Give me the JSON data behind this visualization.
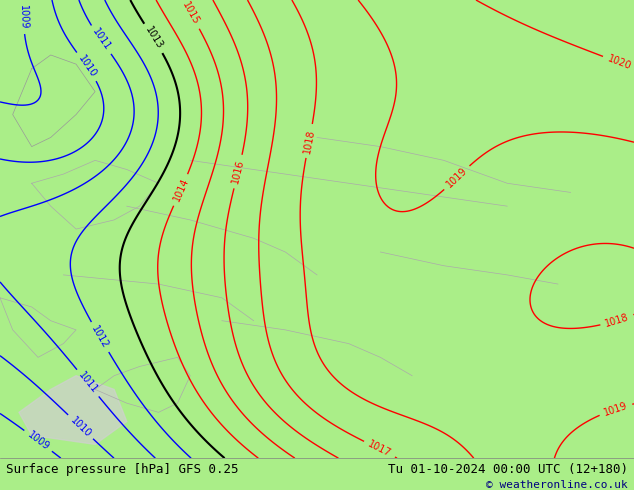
{
  "title_left": "Surface pressure [hPa] GFS 0.25",
  "title_right": "Tu 01-10-2024 00:00 UTC (12+180)",
  "copyright": "© weatheronline.co.uk",
  "bg_color": "#aaee88",
  "land_color": "#aaee88",
  "water_color": "#cccccc",
  "contour_blue_color": "#0000ff",
  "contour_red_color": "#ff0000",
  "contour_black_color": "#000000",
  "contour_gray_color": "#aaaaaa",
  "footer_bg": "#ffffff",
  "footer_text_color": "#000000",
  "font_size_footer": 9,
  "font_size_labels": 8
}
